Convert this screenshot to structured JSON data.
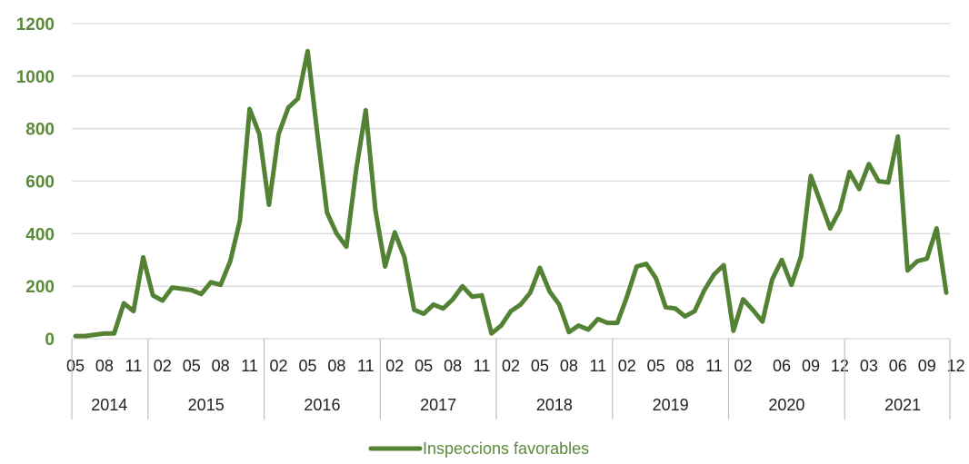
{
  "colors": {
    "series": "#548235",
    "tick_label": "#5b8a3a",
    "grid": "#d9d9d9",
    "axis_text": "#222222",
    "separator": "#bfbfbf"
  },
  "chart_data": {
    "type": "line",
    "title": "",
    "xlabel": "",
    "ylabel": "",
    "ylim": [
      0,
      1200
    ],
    "yticks": [
      "0",
      "200",
      "400",
      "600",
      "800",
      "1000",
      "1200"
    ],
    "grid": true,
    "legend_position": "bottom",
    "series": [
      {
        "name": "Inspeccions favorables",
        "color": "#548235",
        "start": "2014-05",
        "values": [
          10,
          10,
          15,
          20,
          20,
          135,
          105,
          310,
          165,
          145,
          195,
          190,
          185,
          170,
          215,
          205,
          295,
          450,
          875,
          780,
          510,
          780,
          880,
          915,
          1095,
          780,
          480,
          400,
          350,
          640,
          870,
          490,
          275,
          405,
          310,
          110,
          95,
          130,
          115,
          150,
          200,
          160,
          165,
          20,
          50,
          105,
          130,
          175,
          270,
          180,
          130,
          25,
          50,
          35,
          75,
          60,
          60,
          160,
          275,
          285,
          230,
          120,
          115,
          85,
          105,
          185,
          245,
          280,
          30,
          150,
          110,
          65,
          225,
          300,
          205,
          315,
          620,
          520,
          420,
          490,
          635,
          570,
          665,
          600,
          595,
          770,
          260,
          295,
          305,
          420,
          175
        ]
      }
    ],
    "x_month_ticks": [
      {
        "label": "05",
        "index": 0
      },
      {
        "label": "08",
        "index": 3
      },
      {
        "label": "11",
        "index": 6
      },
      {
        "label": "02",
        "index": 9
      },
      {
        "label": "05",
        "index": 12
      },
      {
        "label": "08",
        "index": 15
      },
      {
        "label": "11",
        "index": 18
      },
      {
        "label": "02",
        "index": 21
      },
      {
        "label": "05",
        "index": 24
      },
      {
        "label": "08",
        "index": 27
      },
      {
        "label": "11",
        "index": 30
      },
      {
        "label": "02",
        "index": 33
      },
      {
        "label": "05",
        "index": 36
      },
      {
        "label": "08",
        "index": 39
      },
      {
        "label": "11",
        "index": 42
      },
      {
        "label": "02",
        "index": 45
      },
      {
        "label": "05",
        "index": 48
      },
      {
        "label": "08",
        "index": 51
      },
      {
        "label": "11",
        "index": 54
      },
      {
        "label": "02",
        "index": 57
      },
      {
        "label": "05",
        "index": 60
      },
      {
        "label": "08",
        "index": 63
      },
      {
        "label": "11",
        "index": 66
      },
      {
        "label": "02",
        "index": 69
      },
      {
        "label": "06",
        "index": 73
      },
      {
        "label": "09",
        "index": 76
      },
      {
        "label": "12",
        "index": 79
      },
      {
        "label": "03",
        "index": 82
      },
      {
        "label": "06",
        "index": 85
      },
      {
        "label": "09",
        "index": 88
      },
      {
        "label": "12",
        "index": 91
      }
    ],
    "x_year_groups": [
      {
        "label": "2014",
        "from": 0,
        "to": 7
      },
      {
        "label": "2015",
        "from": 8,
        "to": 19
      },
      {
        "label": "2016",
        "from": 20,
        "to": 31
      },
      {
        "label": "2017",
        "from": 32,
        "to": 43
      },
      {
        "label": "2018",
        "from": 44,
        "to": 55
      },
      {
        "label": "2019",
        "from": 56,
        "to": 67
      },
      {
        "label": "2020",
        "from": 68,
        "to": 79
      },
      {
        "label": "2021",
        "from": 80,
        "to": 91
      }
    ]
  }
}
